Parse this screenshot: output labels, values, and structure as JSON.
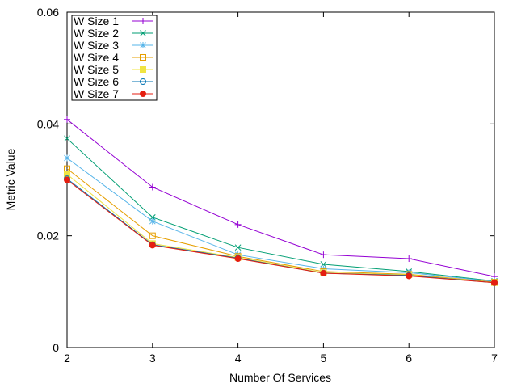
{
  "chart_data": {
    "type": "line",
    "title": "",
    "xlabel": "Number Of Services",
    "ylabel": "Metric Value",
    "x": [
      2,
      3,
      4,
      5,
      6,
      7
    ],
    "xlim": [
      2,
      7
    ],
    "ylim": [
      0,
      0.06
    ],
    "x_ticks": [
      "2",
      "3",
      "4",
      "5",
      "6",
      "7"
    ],
    "y_ticks": [
      "0",
      "0.02",
      "0.04",
      "0.06"
    ],
    "y_tick_values": [
      0,
      0.02,
      0.04,
      0.06
    ],
    "grid": false,
    "legend_position": "top-left",
    "series": [
      {
        "name": "W Size 1",
        "color": "#9400d3",
        "marker": "plus",
        "values": [
          0.0408,
          0.0287,
          0.022,
          0.0166,
          0.0159,
          0.0127
        ]
      },
      {
        "name": "W Size 2",
        "color": "#009e73",
        "marker": "cross",
        "values": [
          0.0374,
          0.0233,
          0.0179,
          0.0149,
          0.0136,
          0.0119
        ]
      },
      {
        "name": "W Size 3",
        "color": "#56b4e9",
        "marker": "star",
        "values": [
          0.0339,
          0.0226,
          0.0166,
          0.0141,
          0.0134,
          0.0118
        ]
      },
      {
        "name": "W Size 4",
        "color": "#e69f00",
        "marker": "open-square",
        "values": [
          0.032,
          0.02,
          0.0163,
          0.0136,
          0.0131,
          0.0117
        ]
      },
      {
        "name": "W Size 5",
        "color": "#f0e442",
        "marker": "filled-square",
        "values": [
          0.031,
          0.0186,
          0.0161,
          0.0134,
          0.013,
          0.0116
        ]
      },
      {
        "name": "W Size 6",
        "color": "#0072b2",
        "marker": "open-circle",
        "values": [
          0.0302,
          0.0184,
          0.016,
          0.0133,
          0.0129,
          0.0116
        ]
      },
      {
        "name": "W Size 7",
        "color": "#e51e10",
        "marker": "filled-circle",
        "values": [
          0.03,
          0.0183,
          0.0159,
          0.0133,
          0.0128,
          0.0116
        ]
      }
    ]
  }
}
